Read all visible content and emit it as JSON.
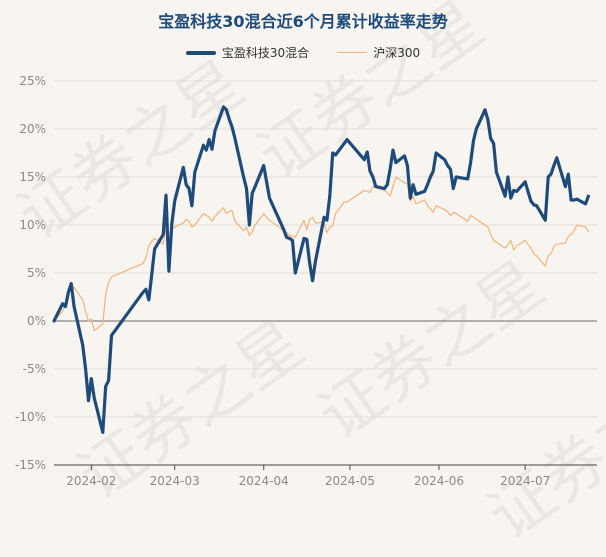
{
  "chart_data": {
    "type": "line",
    "title": "宝盈科技30混合近6个月累计收益率走势",
    "xlabel": "",
    "ylabel": "",
    "ylim": [
      -15,
      25
    ],
    "yticks": [
      -15,
      -10,
      -5,
      0,
      5,
      10,
      15,
      20,
      25
    ],
    "ytick_labels": [
      "-15%",
      "-10%",
      "-5%",
      "0%",
      "5%",
      "10%",
      "15%",
      "20%",
      "25%"
    ],
    "xlim": [
      "2024-01-19",
      "2024-07-26"
    ],
    "xticks": [
      {
        "date": "2024-02-01",
        "label": "2024-02"
      },
      {
        "date": "2024-03-01",
        "label": "2024-03"
      },
      {
        "date": "2024-04-01",
        "label": "2024-04"
      },
      {
        "date": "2024-05-01",
        "label": "2024-05"
      },
      {
        "date": "2024-06-01",
        "label": "2024-06"
      },
      {
        "date": "2024-07-01",
        "label": "2024-07"
      }
    ],
    "grid": "horizontal",
    "legend_position": "top-center",
    "series": [
      {
        "name": "宝盈科技30混合",
        "color": "#1e4b7a",
        "points": [
          [
            "2024-01-19",
            0.0
          ],
          [
            "2024-01-22",
            1.8
          ],
          [
            "2024-01-23",
            1.5
          ],
          [
            "2024-01-24",
            3.0
          ],
          [
            "2024-01-25",
            3.9
          ],
          [
            "2024-01-26",
            1.5
          ],
          [
            "2024-01-29",
            -2.5
          ],
          [
            "2024-01-30",
            -5.0
          ],
          [
            "2024-01-31",
            -8.3
          ],
          [
            "2024-02-01",
            -6.0
          ],
          [
            "2024-02-02",
            -8.0
          ],
          [
            "2024-02-05",
            -11.6
          ],
          [
            "2024-02-06",
            -6.8
          ],
          [
            "2024-02-07",
            -6.2
          ],
          [
            "2024-02-08",
            -1.5
          ],
          [
            "2024-02-19",
            3.0
          ],
          [
            "2024-02-20",
            3.3
          ],
          [
            "2024-02-21",
            2.2
          ],
          [
            "2024-02-22",
            4.8
          ],
          [
            "2024-02-23",
            7.5
          ],
          [
            "2024-02-26",
            9.0
          ],
          [
            "2024-02-27",
            13.1
          ],
          [
            "2024-02-28",
            5.2
          ],
          [
            "2024-02-29",
            10.1
          ],
          [
            "2024-03-01",
            12.5
          ],
          [
            "2024-03-04",
            16.0
          ],
          [
            "2024-03-05",
            14.2
          ],
          [
            "2024-03-06",
            13.8
          ],
          [
            "2024-03-07",
            12.0
          ],
          [
            "2024-03-08",
            15.5
          ],
          [
            "2024-03-11",
            18.3
          ],
          [
            "2024-03-12",
            17.8
          ],
          [
            "2024-03-13",
            18.9
          ],
          [
            "2024-03-14",
            17.9
          ],
          [
            "2024-03-15",
            19.8
          ],
          [
            "2024-03-18",
            22.3
          ],
          [
            "2024-03-19",
            22.0
          ],
          [
            "2024-03-20",
            21.0
          ],
          [
            "2024-03-21",
            20.2
          ],
          [
            "2024-03-22",
            19.0
          ],
          [
            "2024-03-25",
            15.0
          ],
          [
            "2024-03-26",
            13.8
          ],
          [
            "2024-03-27",
            10.0
          ],
          [
            "2024-03-28",
            13.3
          ],
          [
            "2024-03-29",
            14.0
          ],
          [
            "2024-04-01",
            16.2
          ],
          [
            "2024-04-02",
            14.5
          ],
          [
            "2024-04-03",
            12.8
          ],
          [
            "2024-04-08",
            9.5
          ],
          [
            "2024-04-09",
            8.7
          ],
          [
            "2024-04-10",
            8.6
          ],
          [
            "2024-04-11",
            8.4
          ],
          [
            "2024-04-12",
            5.0
          ],
          [
            "2024-04-15",
            8.6
          ],
          [
            "2024-04-16",
            8.5
          ],
          [
            "2024-04-17",
            6.0
          ],
          [
            "2024-04-18",
            4.2
          ],
          [
            "2024-04-19",
            6.2
          ],
          [
            "2024-04-22",
            10.8
          ],
          [
            "2024-04-23",
            10.5
          ],
          [
            "2024-04-24",
            13.0
          ],
          [
            "2024-04-25",
            17.5
          ],
          [
            "2024-04-26",
            17.3
          ],
          [
            "2024-04-29",
            18.5
          ],
          [
            "2024-04-30",
            18.9
          ],
          [
            "2024-05-06",
            16.8
          ],
          [
            "2024-05-07",
            17.6
          ],
          [
            "2024-05-08",
            15.6
          ],
          [
            "2024-05-09",
            15.0
          ],
          [
            "2024-05-10",
            14.0
          ],
          [
            "2024-05-13",
            13.8
          ],
          [
            "2024-05-14",
            14.2
          ],
          [
            "2024-05-15",
            15.8
          ],
          [
            "2024-05-16",
            17.8
          ],
          [
            "2024-05-17",
            16.5
          ],
          [
            "2024-05-20",
            17.2
          ],
          [
            "2024-05-21",
            16.2
          ],
          [
            "2024-05-22",
            12.8
          ],
          [
            "2024-05-23",
            14.2
          ],
          [
            "2024-05-24",
            13.2
          ],
          [
            "2024-05-27",
            13.5
          ],
          [
            "2024-05-28",
            14.2
          ],
          [
            "2024-05-29",
            15.0
          ],
          [
            "2024-05-30",
            15.6
          ],
          [
            "2024-05-31",
            17.5
          ],
          [
            "2024-06-03",
            16.8
          ],
          [
            "2024-06-04",
            16.2
          ],
          [
            "2024-06-05",
            15.8
          ],
          [
            "2024-06-06",
            13.8
          ],
          [
            "2024-06-07",
            15.0
          ],
          [
            "2024-06-11",
            14.8
          ],
          [
            "2024-06-12",
            16.5
          ],
          [
            "2024-06-13",
            18.8
          ],
          [
            "2024-06-14",
            20.0
          ],
          [
            "2024-06-17",
            22.0
          ],
          [
            "2024-06-18",
            21.0
          ],
          [
            "2024-06-19",
            19.0
          ],
          [
            "2024-06-20",
            18.5
          ],
          [
            "2024-06-21",
            15.5
          ],
          [
            "2024-06-24",
            13.0
          ],
          [
            "2024-06-25",
            15.0
          ],
          [
            "2024-06-26",
            12.8
          ],
          [
            "2024-06-27",
            13.6
          ],
          [
            "2024-06-28",
            13.5
          ],
          [
            "2024-07-01",
            14.5
          ],
          [
            "2024-07-02",
            13.5
          ],
          [
            "2024-07-03",
            12.5
          ],
          [
            "2024-07-04",
            12.1
          ],
          [
            "2024-07-05",
            12.0
          ],
          [
            "2024-07-08",
            10.5
          ],
          [
            "2024-07-09",
            15.0
          ],
          [
            "2024-07-10",
            15.3
          ],
          [
            "2024-07-11",
            16.2
          ],
          [
            "2024-07-12",
            17.0
          ],
          [
            "2024-07-15",
            14.0
          ],
          [
            "2024-07-16",
            15.3
          ],
          [
            "2024-07-17",
            12.6
          ],
          [
            "2024-07-18",
            12.6
          ],
          [
            "2024-07-19",
            12.7
          ],
          [
            "2024-07-22",
            12.2
          ],
          [
            "2024-07-23",
            13.0
          ]
        ]
      },
      {
        "name": "沪深300",
        "color": "#f0b47e",
        "points": [
          [
            "2024-01-19",
            0.0
          ],
          [
            "2024-01-22",
            1.0
          ],
          [
            "2024-01-23",
            1.8
          ],
          [
            "2024-01-24",
            2.5
          ],
          [
            "2024-01-25",
            3.8
          ],
          [
            "2024-01-26",
            3.5
          ],
          [
            "2024-01-29",
            2.2
          ],
          [
            "2024-01-30",
            1.0
          ],
          [
            "2024-01-31",
            0.0
          ],
          [
            "2024-02-01",
            0.2
          ],
          [
            "2024-02-02",
            -1.0
          ],
          [
            "2024-02-05",
            -0.3
          ],
          [
            "2024-02-06",
            2.8
          ],
          [
            "2024-02-07",
            4.0
          ],
          [
            "2024-02-08",
            4.6
          ],
          [
            "2024-02-19",
            6.0
          ],
          [
            "2024-02-20",
            6.6
          ],
          [
            "2024-02-21",
            7.8
          ],
          [
            "2024-02-22",
            8.3
          ],
          [
            "2024-02-23",
            8.6
          ],
          [
            "2024-02-26",
            8.0
          ],
          [
            "2024-02-27",
            9.8
          ],
          [
            "2024-02-28",
            7.5
          ],
          [
            "2024-02-29",
            9.5
          ],
          [
            "2024-03-01",
            9.8
          ],
          [
            "2024-03-04",
            10.2
          ],
          [
            "2024-03-05",
            10.6
          ],
          [
            "2024-03-06",
            10.4
          ],
          [
            "2024-03-07",
            9.8
          ],
          [
            "2024-03-08",
            10.0
          ],
          [
            "2024-03-11",
            11.2
          ],
          [
            "2024-03-12",
            11.0
          ],
          [
            "2024-03-13",
            10.8
          ],
          [
            "2024-03-14",
            10.4
          ],
          [
            "2024-03-15",
            10.9
          ],
          [
            "2024-03-18",
            11.8
          ],
          [
            "2024-03-19",
            11.2
          ],
          [
            "2024-03-20",
            11.4
          ],
          [
            "2024-03-21",
            11.5
          ],
          [
            "2024-03-22",
            10.4
          ],
          [
            "2024-03-25",
            9.4
          ],
          [
            "2024-03-26",
            9.8
          ],
          [
            "2024-03-27",
            8.9
          ],
          [
            "2024-03-28",
            9.3
          ],
          [
            "2024-03-29",
            10.0
          ],
          [
            "2024-04-01",
            11.2
          ],
          [
            "2024-04-02",
            10.8
          ],
          [
            "2024-04-03",
            10.5
          ],
          [
            "2024-04-08",
            9.4
          ],
          [
            "2024-04-09",
            9.2
          ],
          [
            "2024-04-10",
            8.9
          ],
          [
            "2024-04-11",
            8.9
          ],
          [
            "2024-04-12",
            8.7
          ],
          [
            "2024-04-15",
            10.5
          ],
          [
            "2024-04-16",
            9.5
          ],
          [
            "2024-04-17",
            10.6
          ],
          [
            "2024-04-18",
            10.8
          ],
          [
            "2024-04-19",
            10.2
          ],
          [
            "2024-04-22",
            10.3
          ],
          [
            "2024-04-23",
            9.2
          ],
          [
            "2024-04-24",
            9.8
          ],
          [
            "2024-04-25",
            9.9
          ],
          [
            "2024-04-26",
            11.2
          ],
          [
            "2024-04-29",
            12.4
          ],
          [
            "2024-04-30",
            12.4
          ],
          [
            "2024-05-06",
            13.6
          ],
          [
            "2024-05-07",
            13.5
          ],
          [
            "2024-05-08",
            13.4
          ],
          [
            "2024-05-09",
            14.0
          ],
          [
            "2024-05-10",
            13.9
          ],
          [
            "2024-05-13",
            13.6
          ],
          [
            "2024-05-14",
            13.4
          ],
          [
            "2024-05-15",
            13.0
          ],
          [
            "2024-05-16",
            14.0
          ],
          [
            "2024-05-17",
            15.0
          ],
          [
            "2024-05-20",
            14.4
          ],
          [
            "2024-05-21",
            14.3
          ],
          [
            "2024-05-22",
            12.5
          ],
          [
            "2024-05-23",
            13.0
          ],
          [
            "2024-05-24",
            12.2
          ],
          [
            "2024-05-27",
            12.6
          ],
          [
            "2024-05-28",
            12.0
          ],
          [
            "2024-05-29",
            11.7
          ],
          [
            "2024-05-30",
            11.3
          ],
          [
            "2024-05-31",
            12.0
          ],
          [
            "2024-06-03",
            11.6
          ],
          [
            "2024-06-04",
            11.4
          ],
          [
            "2024-06-05",
            11.0
          ],
          [
            "2024-06-06",
            11.3
          ],
          [
            "2024-06-07",
            11.2
          ],
          [
            "2024-06-11",
            10.4
          ],
          [
            "2024-06-12",
            11.0
          ],
          [
            "2024-06-13",
            10.8
          ],
          [
            "2024-06-14",
            10.6
          ],
          [
            "2024-06-17",
            10.0
          ],
          [
            "2024-06-18",
            9.8
          ],
          [
            "2024-06-19",
            9.0
          ],
          [
            "2024-06-20",
            8.4
          ],
          [
            "2024-06-21",
            8.2
          ],
          [
            "2024-06-24",
            7.6
          ],
          [
            "2024-06-25",
            7.9
          ],
          [
            "2024-06-26",
            8.4
          ],
          [
            "2024-06-27",
            7.4
          ],
          [
            "2024-06-28",
            7.8
          ],
          [
            "2024-07-01",
            8.4
          ],
          [
            "2024-07-02",
            8.0
          ],
          [
            "2024-07-03",
            7.6
          ],
          [
            "2024-07-04",
            7.0
          ],
          [
            "2024-07-05",
            6.8
          ],
          [
            "2024-07-08",
            5.7
          ],
          [
            "2024-07-09",
            6.8
          ],
          [
            "2024-07-10",
            7.0
          ],
          [
            "2024-07-11",
            7.8
          ],
          [
            "2024-07-12",
            8.0
          ],
          [
            "2024-07-15",
            8.1
          ],
          [
            "2024-07-16",
            8.8
          ],
          [
            "2024-07-17",
            9.0
          ],
          [
            "2024-07-18",
            9.4
          ],
          [
            "2024-07-19",
            10.0
          ],
          [
            "2024-07-22",
            9.8
          ],
          [
            "2024-07-23",
            9.3
          ]
        ]
      }
    ]
  },
  "watermark": {
    "text": "证券之星"
  }
}
